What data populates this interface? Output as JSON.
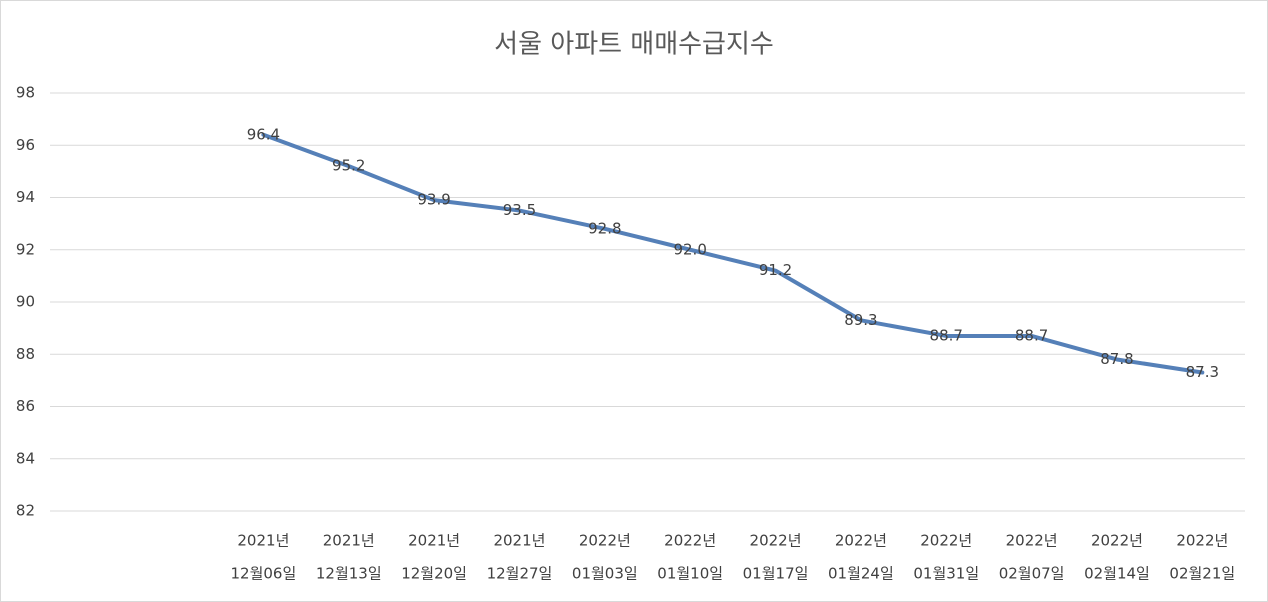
{
  "chart_data": {
    "type": "line",
    "title": "서울 아파트 매매수급지수",
    "categories": [
      null,
      null,
      [
        "2021년",
        "12월06일"
      ],
      [
        "2021년",
        "12월13일"
      ],
      [
        "2021년",
        "12월20일"
      ],
      [
        "2021년",
        "12월27일"
      ],
      [
        "2022년",
        "01월03일"
      ],
      [
        "2022년",
        "01월10일"
      ],
      [
        "2022년",
        "01월17일"
      ],
      [
        "2022년",
        "01월24일"
      ],
      [
        "2022년",
        "01월31일"
      ],
      [
        "2022년",
        "02월07일"
      ],
      [
        "2022년",
        "02월14일"
      ],
      [
        "2022년",
        "02월21일"
      ]
    ],
    "series": [
      {
        "color": "#5580b8",
        "values": [
          null,
          null,
          96.4,
          95.2,
          93.9,
          93.5,
          92.8,
          92.0,
          91.2,
          89.3,
          88.7,
          88.7,
          87.8,
          87.3
        ],
        "value_labels": [
          null,
          null,
          "96.4",
          "95.2",
          "93.9",
          "93.5",
          "92.8",
          "92.0",
          "91.2",
          "89.3",
          "88.7",
          "88.7",
          "87.8",
          "87.3"
        ]
      }
    ],
    "ylim": [
      82,
      98
    ],
    "yticks": [
      82,
      84,
      86,
      88,
      90,
      92,
      94,
      96,
      98
    ],
    "grid": true
  }
}
